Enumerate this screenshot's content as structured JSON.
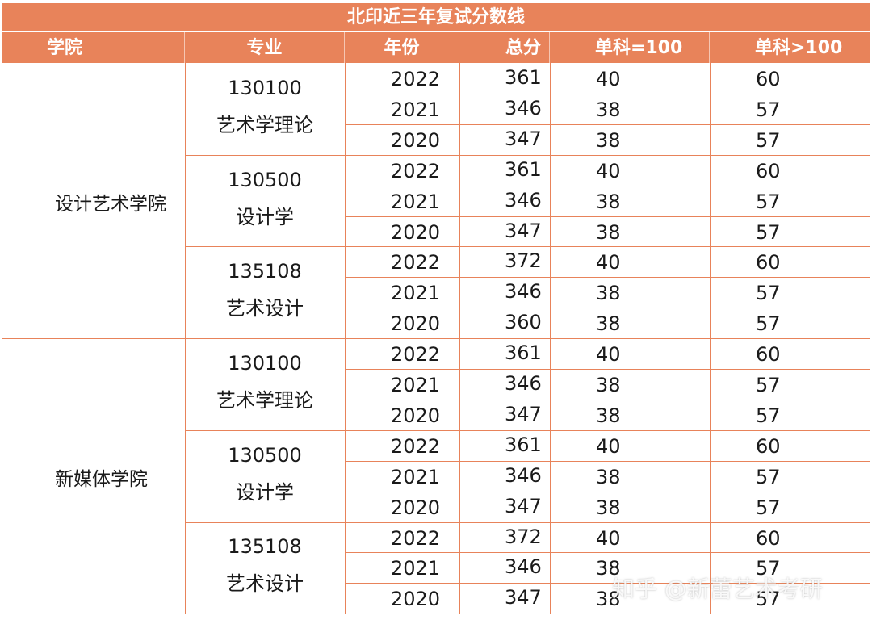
{
  "title": "北印近三年复试分数线",
  "headers": [
    "学院",
    "专业",
    "年份",
    "总分",
    "单科=100",
    "单科>100"
  ],
  "colleges": [
    {
      "name": "设计艺术学院",
      "majors": [
        {
          "code": "130100",
          "name": "艺术学理论",
          "rows": [
            {
              "year": "2022",
              "total": "361",
              "s100": "40",
              "sgt100": "60"
            },
            {
              "year": "2021",
              "total": "346",
              "s100": "38",
              "sgt100": "57"
            },
            {
              "year": "2020",
              "total": "347",
              "s100": "38",
              "sgt100": "57"
            }
          ]
        },
        {
          "code": "130500",
          "name": "设计学",
          "rows": [
            {
              "year": "2022",
              "total": "361",
              "s100": "40",
              "sgt100": "60"
            },
            {
              "year": "2021",
              "total": "346",
              "s100": "38",
              "sgt100": "57"
            },
            {
              "year": "2020",
              "total": "347",
              "s100": "38",
              "sgt100": "57"
            }
          ]
        },
        {
          "code": "135108",
          "name": "艺术设计",
          "rows": [
            {
              "year": "2022",
              "total": "372",
              "s100": "40",
              "sgt100": "60"
            },
            {
              "year": "2021",
              "total": "346",
              "s100": "38",
              "sgt100": "57"
            },
            {
              "year": "2020",
              "total": "360",
              "s100": "38",
              "sgt100": "57"
            }
          ]
        }
      ]
    },
    {
      "name": "新媒体学院",
      "majors": [
        {
          "code": "130100",
          "name": "艺术学理论",
          "rows": [
            {
              "year": "2022",
              "total": "361",
              "s100": "40",
              "sgt100": "60"
            },
            {
              "year": "2021",
              "total": "346",
              "s100": "38",
              "sgt100": "57"
            },
            {
              "year": "2020",
              "total": "347",
              "s100": "38",
              "sgt100": "57"
            }
          ]
        },
        {
          "code": "130500",
          "name": "设计学",
          "rows": [
            {
              "year": "2022",
              "total": "361",
              "s100": "40",
              "sgt100": "60"
            },
            {
              "year": "2021",
              "total": "346",
              "s100": "38",
              "sgt100": "57"
            },
            {
              "year": "2020",
              "total": "347",
              "s100": "38",
              "sgt100": "57"
            }
          ]
        },
        {
          "code": "135108",
          "name": "艺术设计",
          "rows": [
            {
              "year": "2022",
              "total": "372",
              "s100": "40",
              "sgt100": "60"
            },
            {
              "year": "2021",
              "total": "346",
              "s100": "38",
              "sgt100": "57"
            },
            {
              "year": "2020",
              "total": "347",
              "s100": "38",
              "sgt100": "57"
            }
          ]
        }
      ]
    }
  ],
  "watermark": "知乎 @新蕾艺术考研",
  "colors": {
    "header_bg": "#e8835a",
    "grid": "#e8835a",
    "text": "#1a1a1a"
  }
}
